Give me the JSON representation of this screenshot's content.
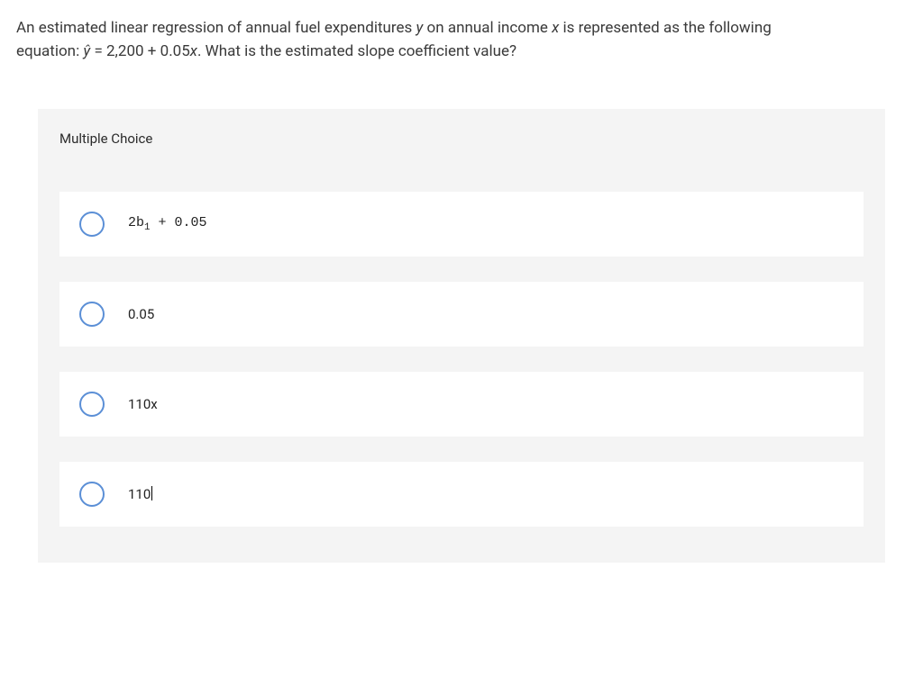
{
  "question": {
    "line1_pre": "An estimated linear regression of annual fuel expenditures ",
    "line1_yvar": "y",
    "line1_mid": " on annual income ",
    "line1_xvar": "x",
    "line1_post": " is represented as the following",
    "line2_pre": "equation: ",
    "line2_yhat": "ŷ",
    "line2_eq_mid": " = 2,200 + 0.05",
    "line2_xvar": "x",
    "line2_post": ". What is the estimated slope coefficient value?"
  },
  "section_label": "Multiple Choice",
  "options": {
    "a": {
      "pre": "2b",
      "sub": "1",
      "post": " + 0.05"
    },
    "b": {
      "text": "0.05"
    },
    "c": {
      "pre": "110",
      "ital": "x"
    },
    "d": {
      "text": "110"
    }
  },
  "colors": {
    "page_bg": "#ffffff",
    "panel_bg": "#f4f4f4",
    "option_bg": "#ffffff",
    "radio_border": "#5b8fd6",
    "text": "#333333"
  }
}
